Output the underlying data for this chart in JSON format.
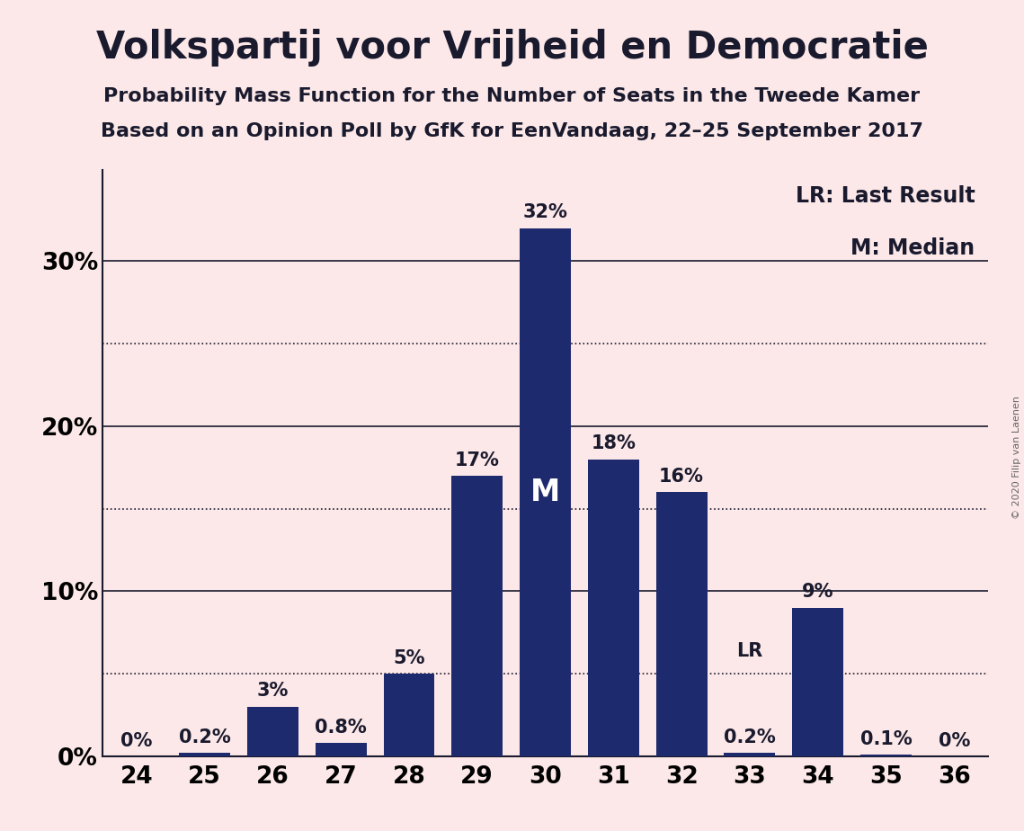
{
  "title": "Volkspartij voor Vrijheid en Democratie",
  "subtitle1": "Probability Mass Function for the Number of Seats in the Tweede Kamer",
  "subtitle2": "Based on an Opinion Poll by GfK for EenVandaag, 22–25 September 2017",
  "copyright": "© 2020 Filip van Laenen",
  "background_color": "#fce8e8",
  "bar_color": "#1e2a6e",
  "categories": [
    24,
    25,
    26,
    27,
    28,
    29,
    30,
    31,
    32,
    33,
    34,
    35,
    36
  ],
  "values": [
    0.0,
    0.2,
    3.0,
    0.8,
    5.0,
    17.0,
    32.0,
    18.0,
    16.0,
    0.2,
    9.0,
    0.1,
    0.0
  ],
  "labels": [
    "0%",
    "0.2%",
    "3%",
    "0.8%",
    "5%",
    "17%",
    "32%",
    "18%",
    "16%",
    "0.2%",
    "9%",
    "0.1%",
    "0%"
  ],
  "median_seat": 30,
  "last_result_seat": 33,
  "yticks": [
    0,
    10,
    20,
    30
  ],
  "ytick_labels": [
    "0%",
    "10%",
    "20%",
    "30%"
  ],
  "solid_lines": [
    10,
    20,
    30
  ],
  "dotted_lines": [
    5,
    15,
    25
  ],
  "ylim": [
    0,
    35.5
  ],
  "legend_lr": "LR: Last Result",
  "legend_m": "M: Median",
  "title_fontsize": 30,
  "subtitle_fontsize": 16,
  "label_fontsize": 15,
  "axis_fontsize": 19,
  "legend_fontsize": 17,
  "copyright_fontsize": 8
}
